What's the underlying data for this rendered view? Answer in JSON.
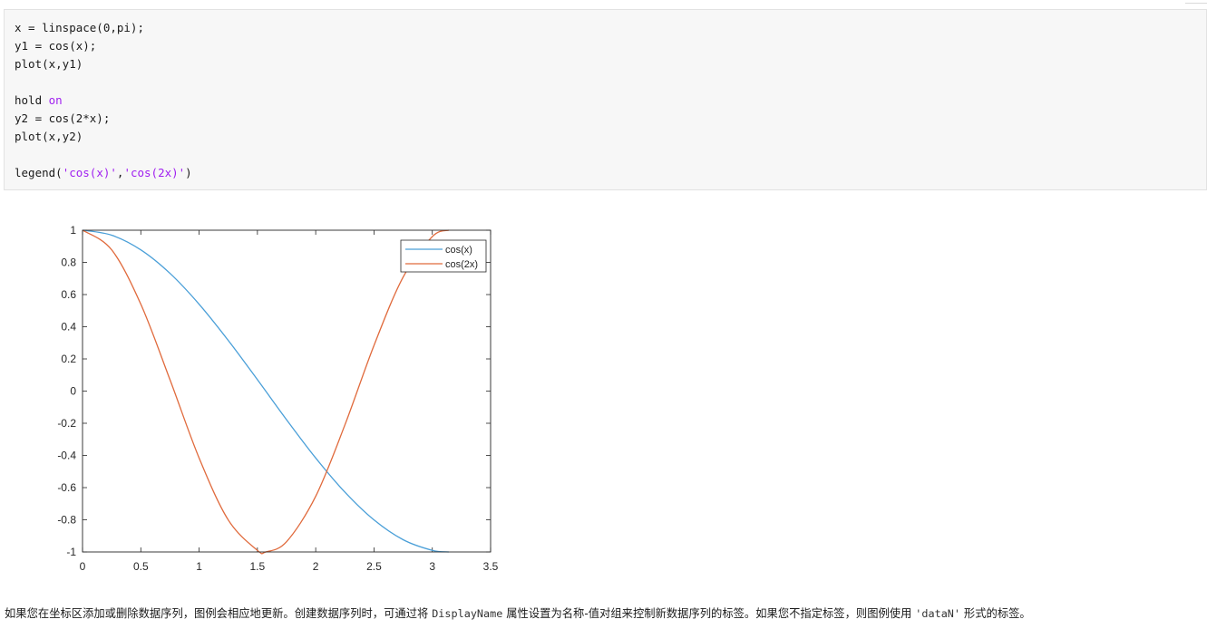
{
  "code": {
    "lines": [
      [
        {
          "t": "x = linspace(0,pi);",
          "k": "plain"
        }
      ],
      [
        {
          "t": "y1 = cos(x);",
          "k": "plain"
        }
      ],
      [
        {
          "t": "plot(x,y1)",
          "k": "plain"
        }
      ],
      [
        {
          "t": "",
          "k": "plain"
        }
      ],
      [
        {
          "t": "hold ",
          "k": "plain"
        },
        {
          "t": "on",
          "k": "kw"
        }
      ],
      [
        {
          "t": "y2 = cos(2*x);",
          "k": "plain"
        }
      ],
      [
        {
          "t": "plot(x,y2)",
          "k": "plain"
        }
      ],
      [
        {
          "t": "",
          "k": "plain"
        }
      ],
      [
        {
          "t": "legend(",
          "k": "plain"
        },
        {
          "t": "'cos(x)'",
          "k": "str"
        },
        {
          "t": ",",
          "k": "plain"
        },
        {
          "t": "'cos(2x)'",
          "k": "str"
        },
        {
          "t": ")",
          "k": "plain"
        }
      ]
    ]
  },
  "colors": {
    "keyword": "#a020f0",
    "string": "#a020f0",
    "series1": "#0072bd",
    "series2": "#d95319"
  },
  "chart_data": {
    "type": "line",
    "title": "",
    "xlabel": "",
    "ylabel": "",
    "xlim": [
      0,
      3.5
    ],
    "ylim": [
      -1,
      1
    ],
    "xticks": [
      0,
      0.5,
      1,
      1.5,
      2,
      2.5,
      3,
      3.5
    ],
    "xtick_labels": [
      "0",
      "0.5",
      "1",
      "1.5",
      "2",
      "2.5",
      "3",
      "3.5"
    ],
    "yticks": [
      1,
      0.8,
      0.6,
      0.4,
      0.2,
      0,
      -0.2,
      -0.4,
      -0.6,
      -0.8,
      -1
    ],
    "ytick_labels": [
      "1",
      "0.8",
      "0.6",
      "0.4",
      "0.2",
      "0",
      "-0.2",
      "-0.4",
      "-0.6",
      "-0.8",
      "-1"
    ],
    "grid": false,
    "legend_position": "top-right",
    "series": [
      {
        "name": "cos(x)",
        "color": "#4a9fd8",
        "x": [
          0,
          0.25,
          0.5,
          0.75,
          1.0,
          1.25,
          1.5,
          1.75,
          2.0,
          2.25,
          2.5,
          2.75,
          3.0,
          3.1416
        ],
        "y": [
          1,
          0.969,
          0.878,
          0.732,
          0.54,
          0.315,
          0.071,
          -0.178,
          -0.416,
          -0.628,
          -0.801,
          -0.924,
          -0.99,
          -1
        ]
      },
      {
        "name": "cos(2x)",
        "color": "#e06a3c",
        "x": [
          0,
          0.25,
          0.5,
          0.75,
          1.0,
          1.25,
          1.5,
          1.5708,
          1.75,
          2.0,
          2.25,
          2.5,
          2.75,
          3.0,
          3.1416
        ],
        "y": [
          1,
          0.878,
          0.54,
          0.071,
          -0.416,
          -0.801,
          -0.99,
          -1,
          -0.936,
          -0.654,
          -0.211,
          0.284,
          0.709,
          0.96,
          1
        ]
      }
    ]
  },
  "description": {
    "parts": [
      {
        "t": "如果您在坐标区添加或删除数据序列，图例会相应地更新。创建数据序列时，可通过将 ",
        "k": "text"
      },
      {
        "t": "DisplayName",
        "k": "code"
      },
      {
        "t": " 属性设置为名称-值对组来控制新数据序列的标签。如果您不指定标签，则图例使用 ",
        "k": "text"
      },
      {
        "t": "'dataN'",
        "k": "code"
      },
      {
        "t": " 形式的标签。",
        "k": "text"
      }
    ]
  }
}
